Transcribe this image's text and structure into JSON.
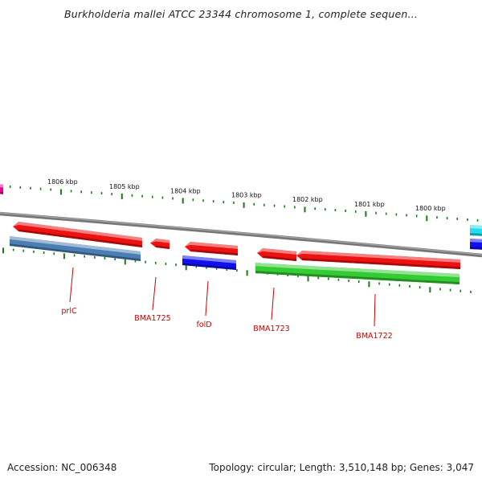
{
  "title": "Burkholderia mallei ATCC 23344 chromosome 1, complete sequen...",
  "footer": {
    "accession": "Accession: NC_006348",
    "summary": "Topology: circular; Length: 3,510,148 bp; Genes: 3,047"
  },
  "colors": {
    "backbone": "#7f7f7f",
    "tick": "#1a7a1a",
    "label": "#cc0000",
    "red": "#ee1111",
    "steelblue": "#4b7fb3",
    "blue": "#1010ee",
    "green": "#33cc33",
    "magenta": "#ee0099",
    "cyan": "#22ddee"
  },
  "scale": {
    "unit": "kbp",
    "labels": [
      "1806 kbp",
      "1805 kbp",
      "1804 kbp",
      "1803 kbp",
      "1802 kbp",
      "1801 kbp",
      "1800 kbp"
    ]
  },
  "genes": [
    {
      "name": "prlC",
      "color": "steelblue"
    },
    {
      "name": "BMA1725",
      "color": "red"
    },
    {
      "name": "folD",
      "color": "blue"
    },
    {
      "name": "BMA1723",
      "color": "green"
    },
    {
      "name": "BMA1722",
      "color": "green"
    }
  ]
}
